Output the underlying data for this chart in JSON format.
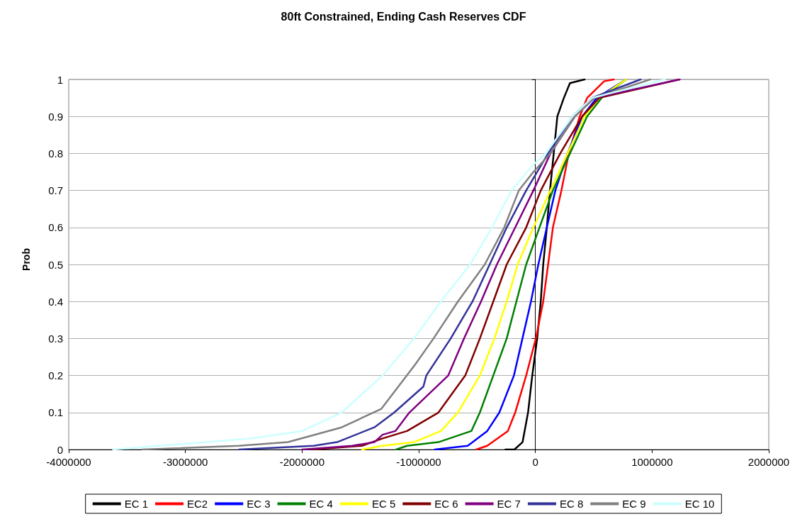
{
  "chart_data": {
    "type": "line",
    "title": "80ft Constrained, Ending Cash Reserves CDF",
    "ylabel": "Prob",
    "xlim": [
      -4000000,
      2000000
    ],
    "xticks": [
      -4000000,
      -3000000,
      -2000000,
      -1000000,
      0,
      1000000,
      2000000
    ],
    "ylim": [
      0,
      1
    ],
    "yticks": [
      0,
      0.1,
      0.2,
      0.3,
      0.4,
      0.5,
      0.6,
      0.7,
      0.8,
      0.9,
      1
    ],
    "grid": "y",
    "legend": "bottom",
    "marker": "none",
    "line_style": "solid",
    "series": [
      {
        "name": "EC 1",
        "color": "#000000",
        "x": [
          -257000,
          -180000,
          -110000,
          -63000,
          -27000,
          15000,
          46000,
          67000,
          98000,
          125000,
          157000,
          188000,
          244000,
          296000,
          422000
        ],
        "values": [
          0,
          0,
          0.02,
          0.1,
          0.2,
          0.3,
          0.4,
          0.5,
          0.6,
          0.7,
          0.8,
          0.9,
          0.95,
          0.99,
          1
        ]
      },
      {
        "name": "EC2",
        "color": "#ff0000",
        "x": [
          -507000,
          -413000,
          -236000,
          -173000,
          -79000,
          4000,
          67000,
          109000,
          150000,
          223000,
          286000,
          380000,
          443000,
          589000,
          672000
        ],
        "values": [
          0,
          0.01,
          0.05,
          0.1,
          0.2,
          0.3,
          0.4,
          0.5,
          0.6,
          0.7,
          0.8,
          0.9,
          0.95,
          0.995,
          1
        ]
      },
      {
        "name": "EC 3",
        "color": "#0000ff",
        "x": [
          -862000,
          -580000,
          -413000,
          -309000,
          -184000,
          -111000,
          -38000,
          25000,
          98000,
          171000,
          276000,
          401000,
          526000,
          777000
        ],
        "values": [
          0,
          0.01,
          0.05,
          0.1,
          0.2,
          0.3,
          0.4,
          0.5,
          0.6,
          0.7,
          0.8,
          0.9,
          0.95,
          1
        ]
      },
      {
        "name": "EC 4",
        "color": "#008000",
        "x": [
          -1194000,
          -1100000,
          -831000,
          -549000,
          -476000,
          -361000,
          -246000,
          -163000,
          -79000,
          35000,
          150000,
          296000,
          443000,
          568000,
          777000
        ],
        "values": [
          0,
          0.01,
          0.02,
          0.05,
          0.1,
          0.2,
          0.3,
          0.4,
          0.5,
          0.6,
          0.7,
          0.8,
          0.9,
          0.95,
          1
        ]
      },
      {
        "name": "EC 5",
        "color": "#ffff00",
        "x": [
          -1486000,
          -1310000,
          -1040000,
          -810000,
          -664000,
          -476000,
          -351000,
          -246000,
          -152000,
          -17000,
          129000,
          276000,
          422000,
          547000,
          777000
        ],
        "values": [
          0,
          0.01,
          0.02,
          0.05,
          0.1,
          0.2,
          0.3,
          0.4,
          0.5,
          0.6,
          0.7,
          0.8,
          0.9,
          0.95,
          1
        ]
      },
      {
        "name": "EC 6",
        "color": "#800000",
        "x": [
          -1905000,
          -1486000,
          -1310000,
          -1100000,
          -831000,
          -601000,
          -476000,
          -361000,
          -246000,
          -79000,
          46000,
          213000,
          401000,
          547000,
          1236000
        ],
        "values": [
          0,
          0.01,
          0.03,
          0.05,
          0.1,
          0.2,
          0.3,
          0.4,
          0.5,
          0.6,
          0.7,
          0.8,
          0.9,
          0.95,
          1
        ]
      },
      {
        "name": "EC 7",
        "color": "#800080",
        "x": [
          -2000000,
          -1570000,
          -1380000,
          -1310000,
          -1200000,
          -1080000,
          -747000,
          -612000,
          -466000,
          -330000,
          -173000,
          -17000,
          129000,
          338000,
          505000,
          1236000
        ],
        "values": [
          0,
          0.01,
          0.02,
          0.04,
          0.05,
          0.1,
          0.2,
          0.3,
          0.4,
          0.5,
          0.6,
          0.7,
          0.8,
          0.9,
          0.95,
          1
        ]
      },
      {
        "name": "EC 8",
        "color": "#333399",
        "x": [
          -2540000,
          -1900000,
          -1700000,
          -1380000,
          -1210000,
          -960000,
          -935000,
          -726000,
          -539000,
          -392000,
          -246000,
          -79000,
          109000,
          317000,
          484000,
          902000
        ],
        "values": [
          0,
          0.01,
          0.02,
          0.06,
          0.1,
          0.17,
          0.2,
          0.3,
          0.4,
          0.5,
          0.6,
          0.7,
          0.8,
          0.9,
          0.95,
          1
        ]
      },
      {
        "name": "EC 9",
        "color": "#808080",
        "x": [
          -3370000,
          -2540000,
          -2120000,
          -1660000,
          -1320000,
          -1030000,
          -873000,
          -664000,
          -434000,
          -267000,
          -142000,
          -17000,
          129000,
          338000,
          505000,
          985000
        ],
        "values": [
          0,
          0.01,
          0.02,
          0.06,
          0.11,
          0.23,
          0.3,
          0.4,
          0.5,
          0.6,
          0.7,
          0.75,
          0.8,
          0.9,
          0.95,
          1
        ]
      },
      {
        "name": "EC 10",
        "color": "#ccffff",
        "x": [
          -3620000,
          -2430000,
          -2000000,
          -1660000,
          -1310000,
          -1040000,
          -810000,
          -559000,
          -372000,
          -205000,
          -17000,
          88000,
          317000,
          484000,
          1110000
        ],
        "values": [
          0,
          0.03,
          0.05,
          0.1,
          0.2,
          0.3,
          0.4,
          0.5,
          0.6,
          0.7,
          0.77,
          0.8,
          0.9,
          0.95,
          1
        ]
      }
    ]
  }
}
